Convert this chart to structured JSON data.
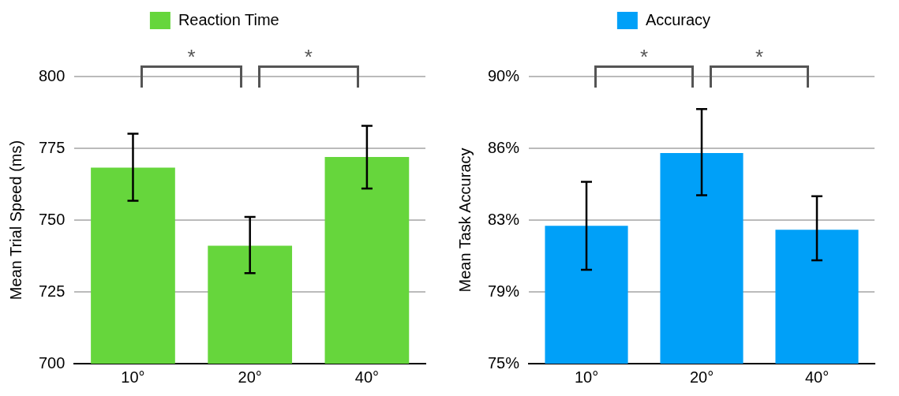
{
  "chart_data": [
    {
      "type": "bar",
      "categories": [
        "10°",
        "20°",
        "40°"
      ],
      "ylabel": "Mean Trial Speed (ms)",
      "ylim": [
        700,
        800
      ],
      "yticks": [
        700,
        725,
        750,
        775,
        800
      ],
      "grid": "y",
      "legend": "top",
      "annotations": [
        "*",
        "*"
      ],
      "series": [
        {
          "name": "Reaction Time",
          "color": "#66d63c",
          "values": [
            768.3,
            741.1,
            772.0
          ],
          "errors": [
            [
              756.7,
              780.1
            ],
            [
              731.5,
              751.1
            ],
            [
              761.0,
              782.8
            ]
          ]
        }
      ]
    },
    {
      "type": "bar",
      "categories": [
        "10°",
        "20°",
        "40°"
      ],
      "ylabel": "Mean Task Accuracy",
      "ylim": [
        75,
        90
      ],
      "yticks": [
        {
          "value": 75,
          "label": "75%"
        },
        {
          "value": 78.75,
          "label": "79%"
        },
        {
          "value": 82.5,
          "label": "83%"
        },
        {
          "value": 86.25,
          "label": "86%"
        },
        {
          "value": 90,
          "label": "90%"
        }
      ],
      "grid": "y",
      "legend": "top",
      "annotations": [
        "*",
        "*"
      ],
      "series": [
        {
          "name": "Accuracy",
          "color": "#00a0f8",
          "values": [
            82.2,
            86.0,
            82.0
          ],
          "errors": [
            [
              79.9,
              84.5
            ],
            [
              83.8,
              88.3
            ],
            [
              80.4,
              83.75
            ]
          ]
        }
      ]
    }
  ]
}
